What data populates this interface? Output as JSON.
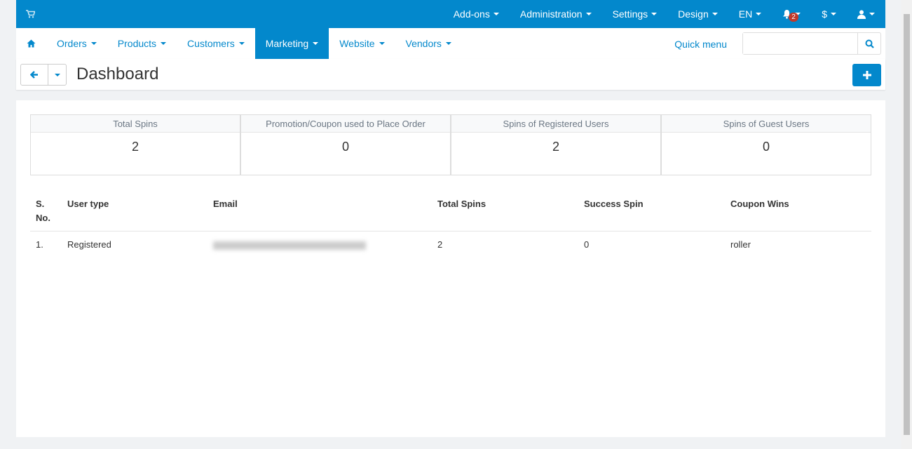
{
  "topbar": {
    "items": [
      {
        "label": "Add-ons"
      },
      {
        "label": "Administration"
      },
      {
        "label": "Settings"
      },
      {
        "label": "Design"
      },
      {
        "label": "EN"
      }
    ],
    "notifications_count": "2",
    "currency": "$"
  },
  "nav": {
    "items": [
      {
        "label": "Orders"
      },
      {
        "label": "Products"
      },
      {
        "label": "Customers"
      },
      {
        "label": "Marketing"
      },
      {
        "label": "Website"
      },
      {
        "label": "Vendors"
      }
    ],
    "quick_menu": "Quick menu",
    "search_placeholder": ""
  },
  "page": {
    "title": "Dashboard"
  },
  "stats": [
    {
      "label": "Total Spins",
      "value": "2"
    },
    {
      "label": "Promotion/Coupon used to Place Order",
      "value": "0"
    },
    {
      "label": "Spins of Registered Users",
      "value": "2"
    },
    {
      "label": "Spins of Guest Users",
      "value": "0"
    }
  ],
  "table": {
    "headers": [
      "S. No.",
      "User type",
      "Email",
      "Total Spins",
      "Success Spin",
      "Coupon Wins"
    ],
    "rows": [
      {
        "sno": "1.",
        "user_type": "Registered",
        "total_spins": "2",
        "success_spin": "0",
        "coupon_wins": "roller"
      }
    ]
  },
  "colors": {
    "brand": "#0388cc",
    "badge": "#c0392b"
  }
}
